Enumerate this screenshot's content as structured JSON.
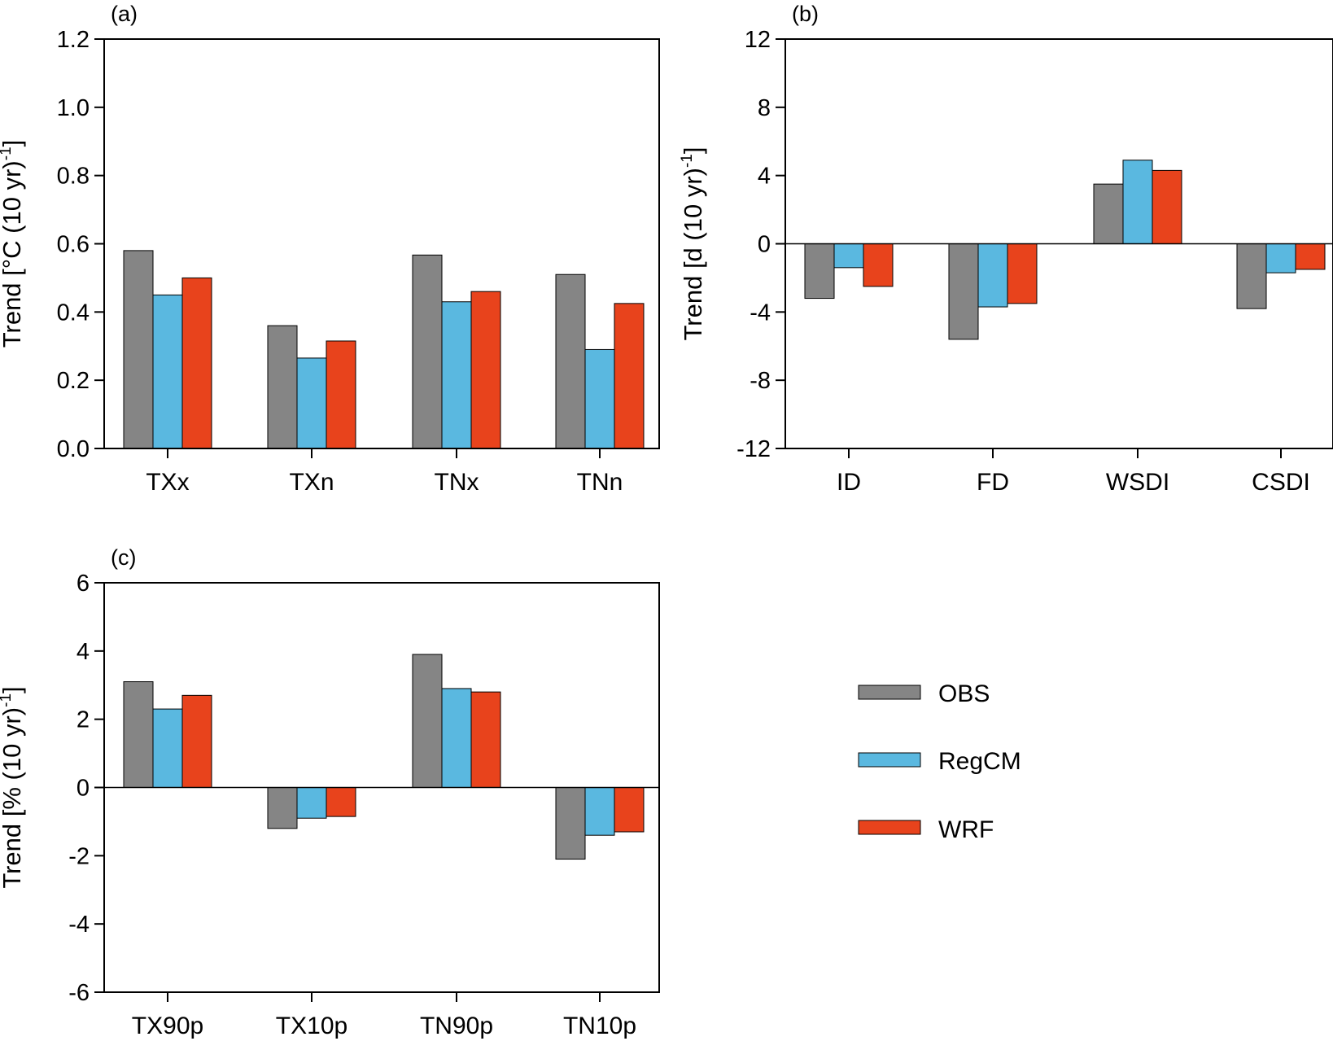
{
  "series_colors": [
    "#858585",
    "#5ab8e0",
    "#e8431c"
  ],
  "legend": [
    "OBS",
    "RegCM",
    "WRF"
  ],
  "chart_data": [
    {
      "type": "bar",
      "panel": "(a)",
      "ylabel": "Trend [°C (10 yr)",
      "ylabel_sup": "-1",
      "ylabel_end": "]",
      "ylim": [
        0,
        1.2
      ],
      "yticks": [
        "0.0",
        "0.2",
        "0.4",
        "0.6",
        "0.8",
        "1.0",
        "1.2"
      ],
      "ytick_values": [
        0,
        0.2,
        0.4,
        0.6,
        0.8,
        1.0,
        1.2
      ],
      "categories": [
        "TXx",
        "TXn",
        "TNx",
        "TNn"
      ],
      "series": [
        {
          "name": "OBS",
          "values": [
            0.58,
            0.36,
            0.567,
            0.51
          ]
        },
        {
          "name": "RegCM",
          "values": [
            0.45,
            0.265,
            0.43,
            0.29
          ]
        },
        {
          "name": "WRF",
          "values": [
            0.5,
            0.315,
            0.46,
            0.425
          ]
        }
      ]
    },
    {
      "type": "bar",
      "panel": "(b)",
      "ylabel": "Trend [d (10 yr)",
      "ylabel_sup": "-1",
      "ylabel_end": "]",
      "ylim": [
        -12,
        12
      ],
      "yticks": [
        "-12",
        "-8",
        "-4",
        "0",
        "4",
        "8",
        "12"
      ],
      "ytick_values": [
        -12,
        -8,
        -4,
        0,
        4,
        8,
        12
      ],
      "categories": [
        "ID",
        "FD",
        "WSDI",
        "CSDI"
      ],
      "series": [
        {
          "name": "OBS",
          "values": [
            -3.2,
            -5.6,
            3.5,
            -3.8
          ]
        },
        {
          "name": "RegCM",
          "values": [
            -1.4,
            -3.7,
            4.9,
            -1.7
          ]
        },
        {
          "name": "WRF",
          "values": [
            -2.5,
            -3.5,
            4.3,
            -1.5
          ]
        }
      ]
    },
    {
      "type": "bar",
      "panel": "(c)",
      "ylabel": "Trend [% (10 yr)",
      "ylabel_sup": "-1",
      "ylabel_end": "]",
      "ylim": [
        -6,
        6
      ],
      "yticks": [
        "-6",
        "-4",
        "-2",
        "0",
        "2",
        "4",
        "6"
      ],
      "ytick_values": [
        -6,
        -4,
        -2,
        0,
        2,
        4,
        6
      ],
      "categories": [
        "TX90p",
        "TX10p",
        "TN90p",
        "TN10p"
      ],
      "series": [
        {
          "name": "OBS",
          "values": [
            3.1,
            -1.2,
            3.9,
            -2.1
          ]
        },
        {
          "name": "RegCM",
          "values": [
            2.3,
            -0.9,
            2.9,
            -1.4
          ]
        },
        {
          "name": "WRF",
          "values": [
            2.7,
            -0.85,
            2.8,
            -1.3
          ]
        }
      ]
    }
  ]
}
